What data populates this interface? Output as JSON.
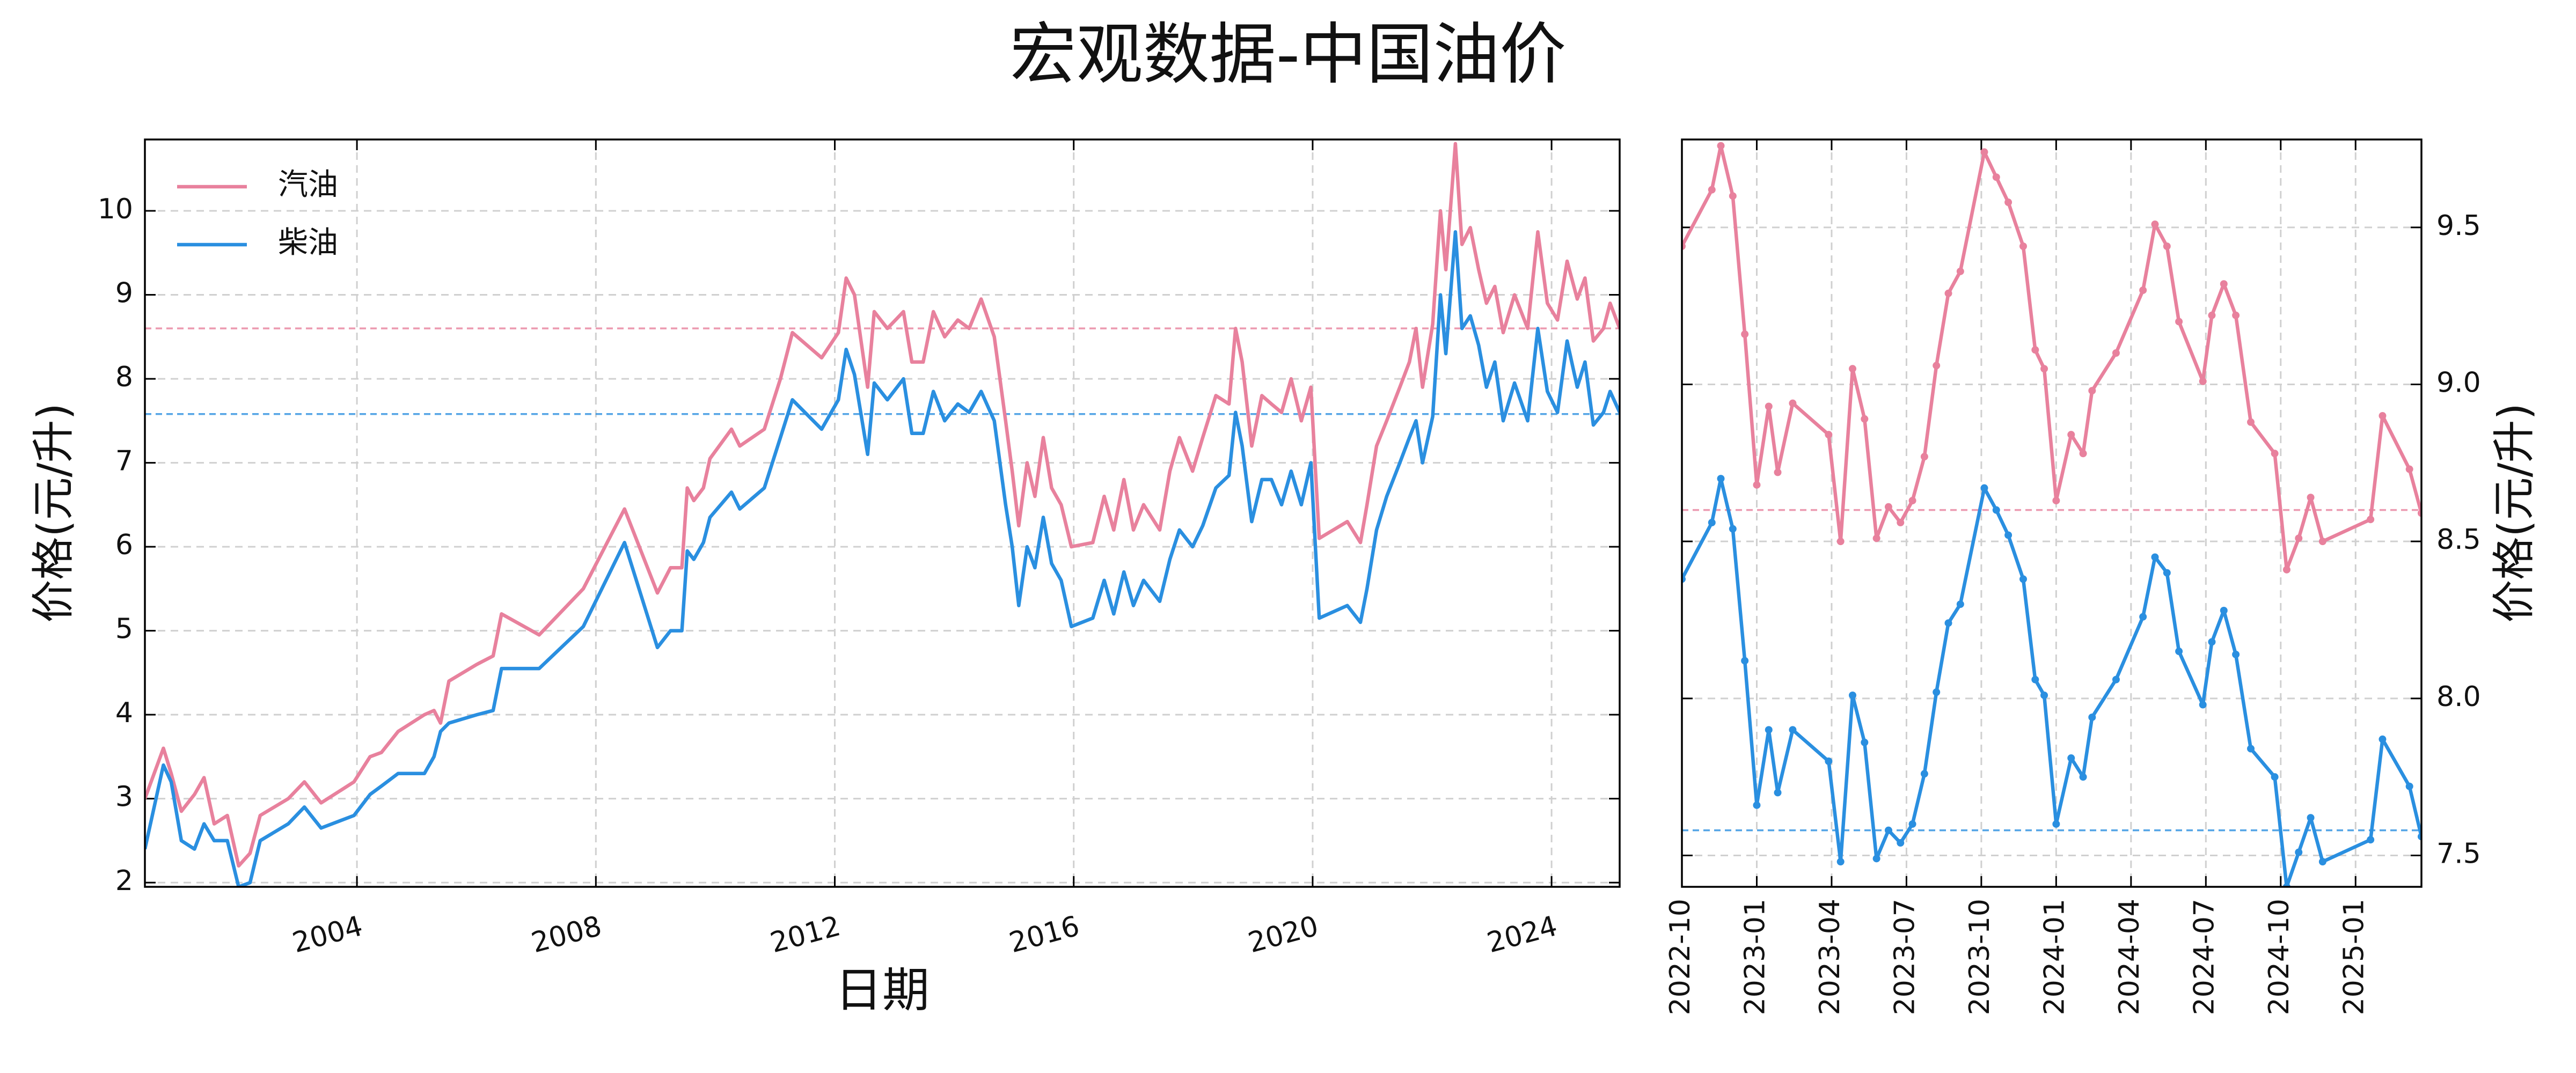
{
  "chart_data": [
    {
      "type": "line",
      "title": "宏观数据-中国油价",
      "xlabel": "日期",
      "ylabel": "价格(元/升)",
      "legend": "upper left",
      "grid": true,
      "yaxis_side": "left",
      "xlim": [
        2000.45,
        2025.14
      ],
      "xticks": [
        2004,
        2008,
        2012,
        2016,
        2020,
        2024
      ],
      "ylim": [
        1.95,
        10.85
      ],
      "yticks": [
        2,
        3,
        4,
        5,
        6,
        7,
        8,
        9,
        10
      ],
      "x": [
        2000.45,
        2000.76,
        2000.89,
        2001.06,
        2001.28,
        2001.44,
        2001.61,
        2001.83,
        2002.02,
        2002.21,
        2002.38,
        2002.85,
        2003.12,
        2003.4,
        2003.95,
        2004.22,
        2004.41,
        2004.69,
        2005.13,
        2005.29,
        2005.4,
        2005.54,
        2006.01,
        2006.28,
        2006.42,
        2007.05,
        2007.79,
        2008.48,
        2009.03,
        2009.25,
        2009.44,
        2009.53,
        2009.64,
        2009.8,
        2009.91,
        2010.27,
        2010.41,
        2010.82,
        2011.09,
        2011.29,
        2011.78,
        2012.06,
        2012.19,
        2012.33,
        2012.55,
        2012.66,
        2012.88,
        2013.15,
        2013.29,
        2013.48,
        2013.65,
        2013.84,
        2014.06,
        2014.25,
        2014.45,
        2014.67,
        2014.86,
        2014.97,
        2015.08,
        2015.22,
        2015.35,
        2015.49,
        2015.63,
        2015.79,
        2015.96,
        2016.32,
        2016.51,
        2016.67,
        2016.84,
        2017,
        2017.17,
        2017.44,
        2017.61,
        2017.77,
        2017.99,
        2018.16,
        2018.38,
        2018.6,
        2018.71,
        2018.82,
        2018.98,
        2019.15,
        2019.31,
        2019.48,
        2019.64,
        2019.81,
        2019.97,
        2020.11,
        2020.58,
        2020.8,
        2020.91,
        2021.07,
        2021.24,
        2021.46,
        2021.62,
        2021.73,
        2021.84,
        2022.01,
        2022.14,
        2022.23,
        2022.39,
        2022.5,
        2022.64,
        2022.78,
        2022.91,
        2023.05,
        2023.19,
        2023.38,
        2023.6,
        2023.77,
        2023.93,
        2024.1,
        2024.26,
        2024.43,
        2024.56,
        2024.7,
        2024.87,
        2024.98,
        2025.14
      ],
      "series": [
        {
          "name": "汽油",
          "color": "#e8819d",
          "reference_line": 8.6,
          "values": [
            3.0,
            3.6,
            3.3,
            2.85,
            3.05,
            3.25,
            2.7,
            2.8,
            2.2,
            2.35,
            2.8,
            3.0,
            3.2,
            2.95,
            3.2,
            3.5,
            3.55,
            3.8,
            4.0,
            4.05,
            3.9,
            4.4,
            4.6,
            4.7,
            5.2,
            4.95,
            5.5,
            6.45,
            5.45,
            5.75,
            5.75,
            6.7,
            6.55,
            6.7,
            7.05,
            7.4,
            7.2,
            7.4,
            8.0,
            8.55,
            8.25,
            8.55,
            9.2,
            9.0,
            7.9,
            8.8,
            8.6,
            8.8,
            8.2,
            8.2,
            8.8,
            8.5,
            8.7,
            8.6,
            8.95,
            8.5,
            7.5,
            6.9,
            6.25,
            7.0,
            6.6,
            7.3,
            6.7,
            6.5,
            6.0,
            6.05,
            6.6,
            6.2,
            6.8,
            6.2,
            6.5,
            6.2,
            6.9,
            7.3,
            6.9,
            7.3,
            7.8,
            7.7,
            8.6,
            8.2,
            7.2,
            7.8,
            7.7,
            7.6,
            8.0,
            7.5,
            7.9,
            6.1,
            6.3,
            6.05,
            6.5,
            7.2,
            7.5,
            7.9,
            8.2,
            8.6,
            7.9,
            8.65,
            10.0,
            9.3,
            10.8,
            9.6,
            9.8,
            9.3,
            8.9,
            9.1,
            8.55,
            9.0,
            8.6,
            9.75,
            8.9,
            8.7,
            9.4,
            8.95,
            9.2,
            8.45,
            8.6,
            8.9,
            8.6
          ]
        },
        {
          "name": "柴油",
          "color": "#2a8fe0",
          "reference_line": 7.58,
          "values": [
            2.4,
            3.4,
            3.2,
            2.5,
            2.4,
            2.7,
            2.5,
            2.5,
            1.95,
            2.0,
            2.5,
            2.7,
            2.9,
            2.65,
            2.8,
            3.05,
            3.15,
            3.3,
            3.3,
            3.5,
            3.8,
            3.9,
            4.0,
            4.05,
            4.55,
            4.55,
            5.05,
            6.05,
            4.8,
            5.0,
            5.0,
            5.95,
            5.85,
            6.05,
            6.35,
            6.65,
            6.45,
            6.7,
            7.3,
            7.75,
            7.4,
            7.75,
            8.35,
            8.05,
            7.1,
            7.95,
            7.75,
            8.0,
            7.35,
            7.35,
            7.85,
            7.5,
            7.7,
            7.6,
            7.85,
            7.5,
            6.5,
            6.0,
            5.3,
            6.0,
            5.75,
            6.35,
            5.8,
            5.6,
            5.05,
            5.15,
            5.6,
            5.2,
            5.7,
            5.3,
            5.6,
            5.35,
            5.85,
            6.2,
            6.0,
            6.25,
            6.7,
            6.85,
            7.6,
            7.2,
            6.3,
            6.8,
            6.8,
            6.5,
            6.9,
            6.5,
            7.0,
            5.15,
            5.3,
            5.1,
            5.5,
            6.2,
            6.6,
            7.0,
            7.3,
            7.5,
            7.0,
            7.55,
            9.0,
            8.3,
            9.75,
            8.6,
            8.75,
            8.4,
            7.9,
            8.2,
            7.5,
            7.95,
            7.5,
            8.6,
            7.85,
            7.6,
            8.45,
            7.9,
            8.2,
            7.45,
            7.6,
            7.85,
            7.6
          ]
        }
      ]
    },
    {
      "type": "line",
      "ylabel": "价格(元/升)",
      "grid": true,
      "yaxis_side": "right",
      "markers": true,
      "xlim": [
        2022.75,
        2025.22
      ],
      "xticks": [
        {
          "value": 2022.75,
          "label": "2022-10"
        },
        {
          "value": 2023.0,
          "label": "2023-01"
        },
        {
          "value": 2023.25,
          "label": "2023-04"
        },
        {
          "value": 2023.5,
          "label": "2023-07"
        },
        {
          "value": 2023.75,
          "label": "2023-10"
        },
        {
          "value": 2024.0,
          "label": "2024-01"
        },
        {
          "value": 2024.25,
          "label": "2024-04"
        },
        {
          "value": 2024.5,
          "label": "2024-07"
        },
        {
          "value": 2024.75,
          "label": "2024-10"
        },
        {
          "value": 2025.0,
          "label": "2025-01"
        }
      ],
      "ylim": [
        7.4,
        9.78
      ],
      "yticks": [
        {
          "value": 7.5,
          "label": "7.5"
        },
        {
          "value": 8.0,
          "label": "8.0"
        },
        {
          "value": 8.5,
          "label": "8.5"
        },
        {
          "value": 9.0,
          "label": "9.0"
        },
        {
          "value": 9.5,
          "label": "9.5"
        }
      ],
      "x": [
        2022.75,
        2022.85,
        2022.88,
        2022.92,
        2022.96,
        2023.0,
        2023.04,
        2023.07,
        2023.12,
        2023.24,
        2023.28,
        2023.32,
        2023.36,
        2023.4,
        2023.44,
        2023.48,
        2023.52,
        2023.56,
        2023.6,
        2023.64,
        2023.68,
        2023.76,
        2023.8,
        2023.84,
        2023.89,
        2023.93,
        2023.96,
        2024.0,
        2024.05,
        2024.09,
        2024.12,
        2024.2,
        2024.29,
        2024.33,
        2024.37,
        2024.41,
        2024.49,
        2024.52,
        2024.56,
        2024.6,
        2024.65,
        2024.73,
        2024.77,
        2024.81,
        2024.85,
        2024.89,
        2025.05,
        2025.09,
        2025.18,
        2025.22
      ],
      "series": [
        {
          "color": "#e8819d",
          "reference_line": 8.6,
          "values": [
            9.44,
            9.62,
            9.76,
            9.6,
            9.16,
            8.68,
            8.93,
            8.72,
            8.94,
            8.84,
            8.5,
            9.05,
            8.89,
            8.51,
            8.61,
            8.56,
            8.63,
            8.77,
            9.06,
            9.29,
            9.36,
            9.74,
            9.66,
            9.58,
            9.44,
            9.11,
            9.05,
            8.63,
            8.84,
            8.78,
            8.98,
            9.1,
            9.3,
            9.51,
            9.44,
            9.2,
            9.01,
            9.22,
            9.32,
            9.22,
            8.88,
            8.78,
            8.41,
            8.51,
            8.64,
            8.5,
            8.57,
            8.9,
            8.73,
            8.59
          ]
        },
        {
          "color": "#2a8fe0",
          "reference_line": 7.58,
          "values": [
            8.38,
            8.56,
            8.7,
            8.54,
            8.12,
            7.66,
            7.9,
            7.7,
            7.9,
            7.8,
            7.48,
            8.01,
            7.86,
            7.49,
            7.58,
            7.54,
            7.6,
            7.76,
            8.02,
            8.24,
            8.3,
            8.67,
            8.6,
            8.52,
            8.38,
            8.06,
            8.01,
            7.6,
            7.81,
            7.75,
            7.94,
            8.06,
            8.26,
            8.45,
            8.4,
            8.15,
            7.98,
            8.18,
            8.28,
            8.14,
            7.84,
            7.75,
            7.4,
            7.51,
            7.62,
            7.48,
            7.55,
            7.87,
            7.72,
            7.56
          ]
        }
      ]
    }
  ]
}
